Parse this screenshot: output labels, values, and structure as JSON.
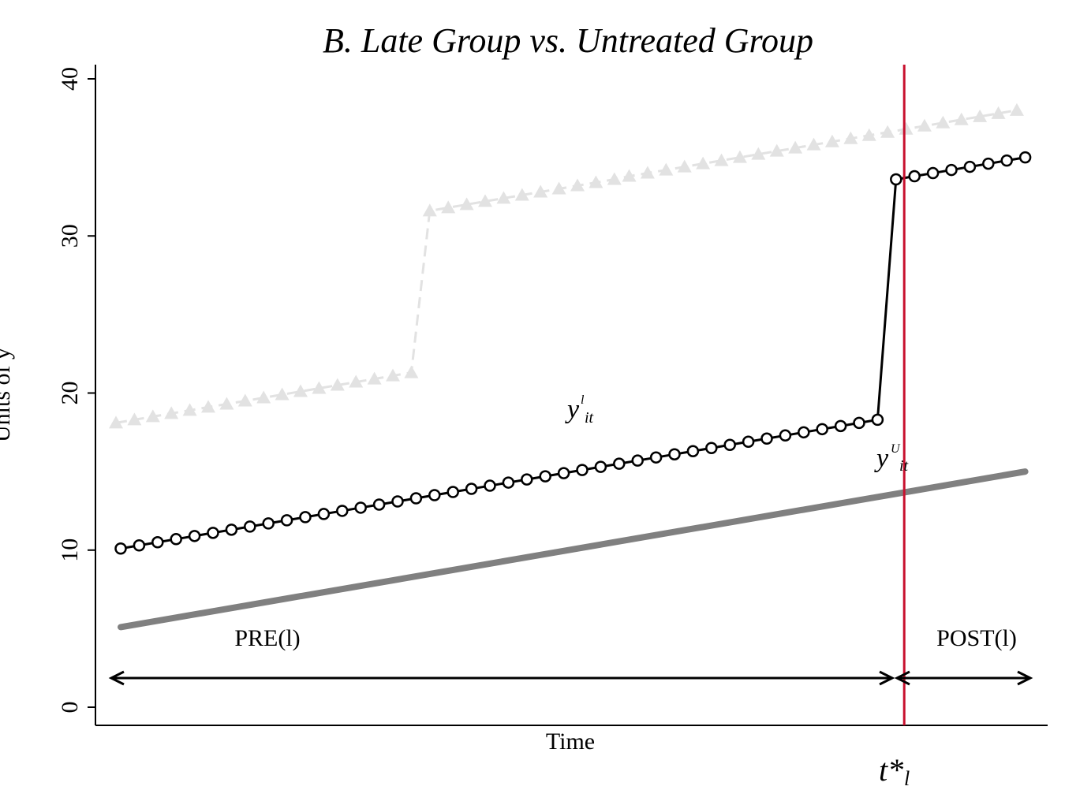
{
  "chart_data": {
    "type": "line",
    "title": "B. Late Group vs. Untreated Group",
    "xlabel": "Time",
    "ylabel": "Units of y",
    "ylim": [
      0,
      40
    ],
    "yticks": [
      "0",
      "10",
      "20",
      "30",
      "40"
    ],
    "grid": false,
    "legend": "none",
    "treatment_time_label": "t*",
    "treatment_time_subscript": "l",
    "treatment_time_index": 43,
    "series": [
      {
        "key": "early",
        "style": "dashed-triangles",
        "color": "#e2e2e2",
        "x": [
          0,
          1,
          2,
          3,
          4,
          5,
          6,
          7,
          8,
          9,
          10,
          11,
          12,
          13,
          14,
          15,
          16,
          17,
          18,
          19,
          20,
          21,
          22,
          23,
          24,
          25,
          26,
          27,
          27.8,
          28.8,
          29.8,
          30.8,
          31.8,
          32.8,
          33.8,
          34.8,
          35.8,
          36.8,
          37.8,
          38.8,
          39.8,
          40.8,
          41.8,
          42.8,
          43.8,
          44.8,
          45.8,
          46.8,
          47.8,
          48.8
        ],
        "values": [
          18.1,
          18.3,
          18.5,
          18.7,
          18.9,
          19.1,
          19.3,
          19.5,
          19.7,
          19.9,
          20.1,
          20.3,
          20.5,
          20.7,
          20.9,
          21.1,
          21.3,
          31.6,
          31.8,
          32.0,
          32.2,
          32.4,
          32.6,
          32.8,
          33.0,
          33.2,
          33.4,
          33.6,
          33.8,
          34.0,
          34.2,
          34.4,
          34.6,
          34.8,
          35.0,
          35.2,
          35.4,
          35.6,
          35.8,
          36.0,
          36.2,
          36.4,
          36.6,
          36.8,
          37.0,
          37.2,
          37.4,
          37.6,
          37.8,
          38.0
        ]
      },
      {
        "key": "late",
        "style": "solid-circles",
        "color": "#000000",
        "values": [
          10.1,
          10.3,
          10.5,
          10.7,
          10.9,
          11.1,
          11.3,
          11.5,
          11.7,
          11.9,
          12.1,
          12.3,
          12.5,
          12.7,
          12.9,
          13.1,
          13.3,
          13.5,
          13.7,
          13.9,
          14.1,
          14.3,
          14.5,
          14.7,
          14.9,
          15.1,
          15.3,
          15.5,
          15.7,
          15.9,
          16.1,
          16.3,
          16.5,
          16.7,
          16.9,
          17.1,
          17.3,
          17.5,
          17.7,
          17.9,
          18.1,
          18.3,
          33.6,
          33.8,
          34.0,
          34.2,
          34.4,
          34.6,
          34.8,
          35.0
        ]
      },
      {
        "key": "untreated",
        "style": "thick-line",
        "color": "#808080",
        "x": [
          0,
          49
        ],
        "values": [
          5.1,
          15.0
        ]
      }
    ],
    "annotations": {
      "late_label_main": "y",
      "late_label_sup": "l",
      "late_label_sub": "it",
      "untreated_label_main": "y",
      "untreated_label_sup": "U",
      "untreated_label_sub": "it",
      "pre_label": "PRE(l)",
      "post_label": "POST(l)"
    }
  }
}
